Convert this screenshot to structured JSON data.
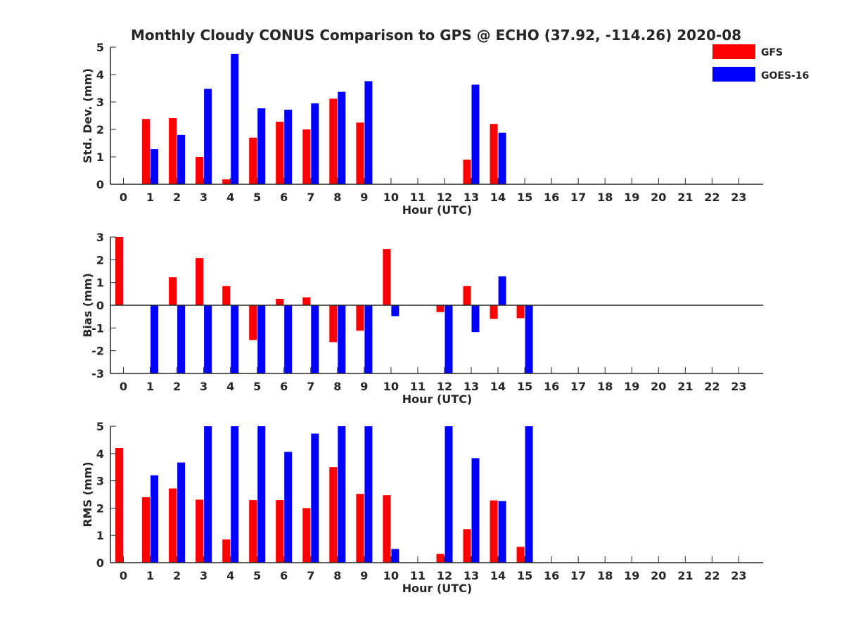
{
  "title": "Monthly Cloudy CONUS Comparison to GPS @ ECHO (37.92, -114.26) 2020-08",
  "colors": {
    "gfs": "#ff0000",
    "goes": "#0000ff",
    "axis": "#262626"
  },
  "legend": {
    "placement": "top-right",
    "items": [
      "GFS",
      "GOES-16"
    ]
  },
  "chart_data": [
    {
      "type": "bar",
      "xlabel": "Hour (UTC)",
      "ylabel": "Std. Dev. (mm)",
      "ylim": [
        0,
        5
      ],
      "yticks": [
        0,
        1,
        2,
        3,
        4,
        5
      ],
      "categories": [
        "0",
        "1",
        "2",
        "3",
        "4",
        "5",
        "6",
        "7",
        "8",
        "9",
        "10",
        "11",
        "12",
        "13",
        "14",
        "15",
        "16",
        "17",
        "18",
        "19",
        "20",
        "21",
        "22",
        "23"
      ],
      "series": [
        {
          "name": "GFS",
          "values": [
            null,
            2.38,
            2.41,
            1.0,
            0.18,
            1.7,
            2.28,
            2.0,
            3.12,
            2.25,
            null,
            null,
            null,
            0.9,
            2.2,
            null,
            null,
            null,
            null,
            null,
            null,
            null,
            null,
            null
          ]
        },
        {
          "name": "GOES-16",
          "values": [
            null,
            1.28,
            1.8,
            3.48,
            4.75,
            2.77,
            2.72,
            2.95,
            3.37,
            3.76,
            null,
            null,
            null,
            3.63,
            1.88,
            null,
            null,
            null,
            null,
            null,
            null,
            null,
            null,
            null
          ]
        }
      ]
    },
    {
      "type": "bar",
      "xlabel": "Hour (UTC)",
      "ylabel": "Bias (mm)",
      "ylim": [
        -3,
        3
      ],
      "yticks": [
        -3,
        -2,
        -1,
        0,
        1,
        2,
        3
      ],
      "categories": [
        "0",
        "1",
        "2",
        "3",
        "4",
        "5",
        "6",
        "7",
        "8",
        "9",
        "10",
        "11",
        "12",
        "13",
        "14",
        "15",
        "16",
        "17",
        "18",
        "19",
        "20",
        "21",
        "22",
        "23"
      ],
      "series": [
        {
          "name": "GFS",
          "values": [
            3.0,
            null,
            1.23,
            2.07,
            0.84,
            -1.53,
            0.28,
            0.35,
            -1.62,
            -1.12,
            2.47,
            null,
            -0.3,
            0.84,
            -0.6,
            -0.57,
            null,
            null,
            null,
            null,
            null,
            null,
            null,
            null
          ]
        },
        {
          "name": "GOES-16",
          "values": [
            null,
            -3.0,
            -3.0,
            -3.0,
            -3.0,
            -3.0,
            -3.0,
            -3.0,
            -3.0,
            -3.0,
            -0.48,
            null,
            -3.0,
            -1.18,
            1.27,
            -3.0,
            null,
            null,
            null,
            null,
            null,
            null,
            null,
            null
          ]
        }
      ]
    },
    {
      "type": "bar",
      "xlabel": "Hour (UTC)",
      "ylabel": "RMS (mm)",
      "ylim": [
        0,
        5
      ],
      "yticks": [
        0,
        1,
        2,
        3,
        4,
        5
      ],
      "categories": [
        "0",
        "1",
        "2",
        "3",
        "4",
        "5",
        "6",
        "7",
        "8",
        "9",
        "10",
        "11",
        "12",
        "13",
        "14",
        "15",
        "16",
        "17",
        "18",
        "19",
        "20",
        "21",
        "22",
        "23"
      ],
      "series": [
        {
          "name": "GFS",
          "values": [
            4.2,
            2.4,
            2.72,
            2.31,
            0.85,
            2.29,
            2.29,
            2.0,
            3.5,
            2.52,
            2.47,
            null,
            0.32,
            1.23,
            2.28,
            0.58,
            null,
            null,
            null,
            null,
            null,
            null,
            null,
            null
          ]
        },
        {
          "name": "GOES-16",
          "values": [
            null,
            3.2,
            3.67,
            5.0,
            5.0,
            5.0,
            4.06,
            4.73,
            5.0,
            5.0,
            0.5,
            null,
            5.0,
            3.83,
            2.26,
            5.0,
            null,
            null,
            null,
            null,
            null,
            null,
            null,
            null
          ]
        }
      ]
    }
  ]
}
